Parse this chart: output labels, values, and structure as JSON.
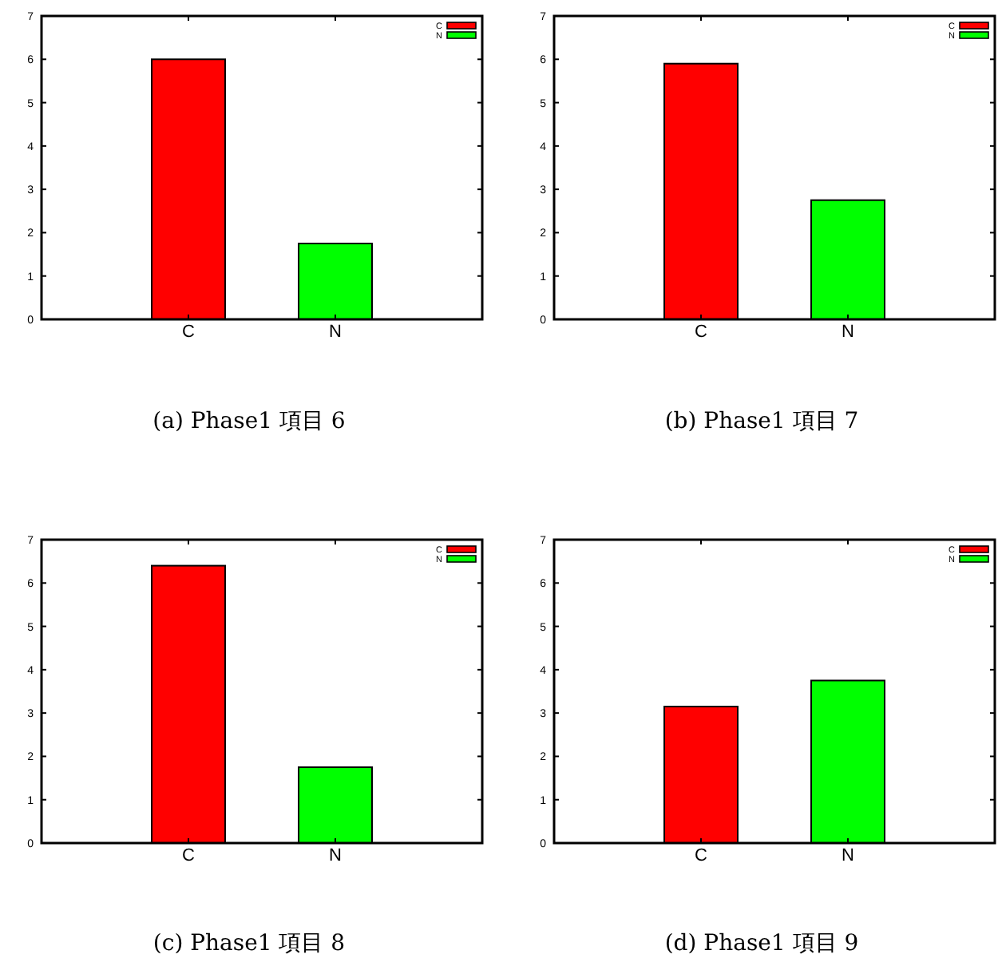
{
  "chart_data": [
    {
      "type": "bar",
      "title": "(a) Phase1 項目 6",
      "categories": [
        "C",
        "N"
      ],
      "series": [
        {
          "name": "C",
          "color": "#ff0000",
          "values": [
            6.0,
            null
          ]
        },
        {
          "name": "N",
          "color": "#00ff00",
          "values": [
            null,
            1.75
          ]
        }
      ],
      "ylim": [
        0,
        7
      ],
      "yticks": [
        0,
        1,
        2,
        3,
        4,
        5,
        6,
        7
      ],
      "legend": "top right"
    },
    {
      "type": "bar",
      "title": "(b) Phase1 項目 7",
      "categories": [
        "C",
        "N"
      ],
      "series": [
        {
          "name": "C",
          "color": "#ff0000",
          "values": [
            5.9,
            null
          ]
        },
        {
          "name": "N",
          "color": "#00ff00",
          "values": [
            null,
            2.75
          ]
        }
      ],
      "ylim": [
        0,
        7
      ],
      "yticks": [
        0,
        1,
        2,
        3,
        4,
        5,
        6,
        7
      ],
      "legend": "top right"
    },
    {
      "type": "bar",
      "title": "(c) Phase1 項目 8",
      "categories": [
        "C",
        "N"
      ],
      "series": [
        {
          "name": "C",
          "color": "#ff0000",
          "values": [
            6.4,
            null
          ]
        },
        {
          "name": "N",
          "color": "#00ff00",
          "values": [
            null,
            1.75
          ]
        }
      ],
      "ylim": [
        0,
        7
      ],
      "yticks": [
        0,
        1,
        2,
        3,
        4,
        5,
        6,
        7
      ],
      "legend": "top right"
    },
    {
      "type": "bar",
      "title": "(d) Phase1 項目 9",
      "categories": [
        "C",
        "N"
      ],
      "series": [
        {
          "name": "C",
          "color": "#ff0000",
          "values": [
            3.15,
            null
          ]
        },
        {
          "name": "N",
          "color": "#00ff00",
          "values": [
            null,
            3.75
          ]
        }
      ],
      "ylim": [
        0,
        7
      ],
      "yticks": [
        0,
        1,
        2,
        3,
        4,
        5,
        6,
        7
      ],
      "legend": "top right"
    }
  ]
}
